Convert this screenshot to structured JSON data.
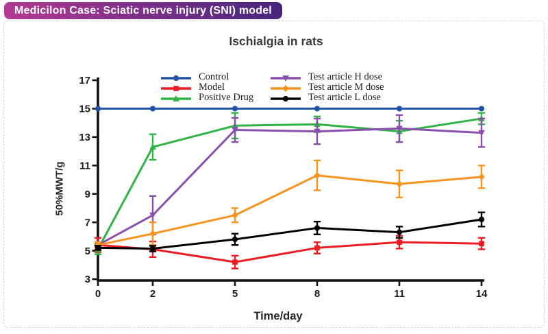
{
  "badge": {
    "label": "Medicilon Case: Sciatic nerve injury (SNI) model",
    "color_left": "#b23a92",
    "color_right": "#45267d"
  },
  "chart_data": {
    "type": "line",
    "title": "Ischialgia in rats",
    "xlabel": "Time/day",
    "ylabel": "50%MWT/g",
    "x": [
      0,
      2,
      5,
      8,
      11,
      14
    ],
    "xticks": [
      0,
      2,
      5,
      8,
      11,
      14
    ],
    "yticks": [
      3,
      5,
      7,
      9,
      11,
      13,
      15,
      17
    ],
    "xlim": [
      0,
      14
    ],
    "ylim": [
      3,
      17
    ],
    "grid": false,
    "error_bars": true,
    "legend_position": "top-inside-two-columns",
    "axis_color": "#111111",
    "tick_label_color": "#1c1c1c",
    "series": [
      {
        "name": "Control",
        "color": "#2152a3",
        "marker": "circle",
        "values": [
          15,
          15,
          15,
          15,
          15,
          15
        ],
        "errors": [
          0,
          0,
          0,
          0,
          0,
          0
        ]
      },
      {
        "name": "Model",
        "color": "#ec1c24",
        "marker": "square",
        "values": [
          5.4,
          5.1,
          4.2,
          5.2,
          5.6,
          5.5
        ],
        "errors": [
          0.5,
          0.55,
          0.45,
          0.4,
          0.45,
          0.4
        ]
      },
      {
        "name": "Positive Drug",
        "color": "#2fb344",
        "marker": "triangle-up",
        "values": [
          5.1,
          12.3,
          13.8,
          13.9,
          13.4,
          14.3
        ],
        "errors": [
          0.35,
          0.9,
          0.9,
          0.55,
          0.75,
          0.4
        ]
      },
      {
        "name": "Test article H dose",
        "color": "#8a4fae",
        "marker": "triangle-down",
        "values": [
          5.4,
          7.5,
          13.5,
          13.4,
          13.6,
          13.3
        ],
        "errors": [
          0.2,
          1.35,
          0.85,
          0.9,
          0.95,
          1.0
        ]
      },
      {
        "name": "Test article M dose",
        "color": "#f7941e",
        "marker": "diamond",
        "values": [
          5.4,
          6.2,
          7.5,
          10.3,
          9.7,
          10.2
        ],
        "errors": [
          0.2,
          0.8,
          0.5,
          1.05,
          0.95,
          0.8
        ]
      },
      {
        "name": "Test article L dose",
        "color": "#000000",
        "marker": "circle",
        "values": [
          5.2,
          5.15,
          5.8,
          6.6,
          6.3,
          7.2
        ],
        "errors": [
          0.15,
          0.2,
          0.4,
          0.45,
          0.4,
          0.5
        ]
      }
    ]
  }
}
